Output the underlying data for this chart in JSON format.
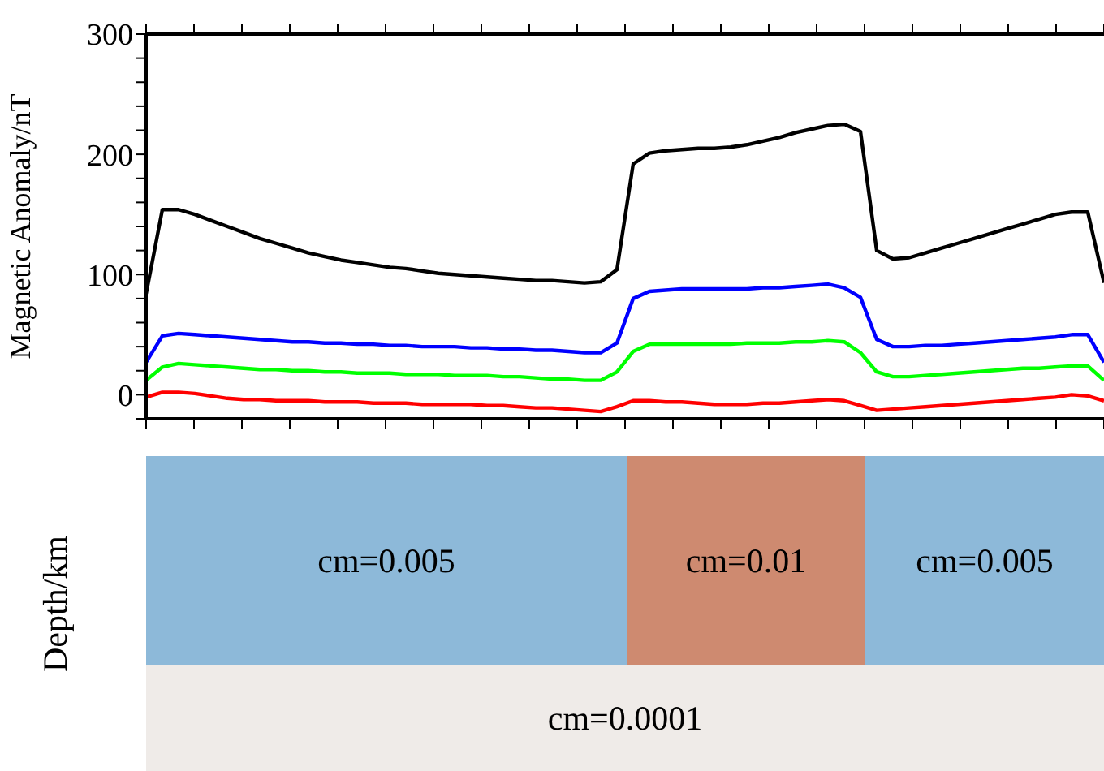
{
  "chart_data": [
    {
      "type": "line",
      "ylabel": "Magnetic Anomaly/nT",
      "tick_labels": "y",
      "ylim": [
        -20,
        300
      ],
      "yticks": [
        {
          "value": -20,
          "label": null
        },
        0,
        {
          "value": 20,
          "label": null
        },
        {
          "value": 40,
          "label": null
        },
        {
          "value": 60,
          "label": null
        },
        {
          "value": 80,
          "label": null
        },
        100,
        {
          "value": 120,
          "label": null
        },
        {
          "value": 140,
          "label": null
        },
        {
          "value": 160,
          "label": null
        },
        {
          "value": 180,
          "label": null
        },
        200,
        {
          "value": 220,
          "label": null
        },
        {
          "value": 240,
          "label": null
        },
        {
          "value": 260,
          "label": null
        },
        {
          "value": 280,
          "label": null
        },
        300
      ],
      "categories": [
        null,
        null,
        null,
        null,
        null,
        null,
        null,
        null,
        null,
        null,
        null,
        null,
        null,
        null,
        null,
        null,
        null,
        null,
        null,
        null,
        null,
        null,
        null,
        null,
        null,
        null,
        null,
        null,
        null,
        null,
        null,
        null,
        null,
        null,
        null,
        null,
        null,
        null,
        null,
        null,
        null,
        null,
        null,
        null,
        null,
        null,
        null,
        null,
        null,
        null,
        null,
        null,
        null,
        null,
        null,
        null,
        null,
        null,
        null,
        null
      ],
      "line_style": "solid",
      "marker": "none",
      "grid": false,
      "legend": false,
      "series": [
        {
          "color": "#000000",
          "values": [
            84,
            154,
            154,
            150,
            145,
            140,
            135,
            130,
            126,
            122,
            118,
            115,
            112,
            110,
            108,
            106,
            105,
            103,
            101,
            100,
            99,
            98,
            97,
            96,
            95,
            95,
            94,
            93,
            94,
            104,
            192,
            201,
            203,
            204,
            205,
            205,
            206,
            208,
            211,
            214,
            218,
            221,
            224,
            225,
            219,
            120,
            113,
            114,
            118,
            122,
            126,
            130,
            134,
            138,
            142,
            146,
            150,
            152,
            152,
            93
          ]
        },
        {
          "color": "#0000ff",
          "values": [
            27,
            49,
            51,
            50,
            49,
            48,
            47,
            46,
            45,
            44,
            44,
            43,
            43,
            42,
            42,
            41,
            41,
            40,
            40,
            40,
            39,
            39,
            38,
            38,
            37,
            37,
            36,
            35,
            35,
            43,
            80,
            86,
            87,
            88,
            88,
            88,
            88,
            88,
            89,
            89,
            90,
            91,
            92,
            89,
            81,
            46,
            40,
            40,
            41,
            41,
            42,
            43,
            44,
            45,
            46,
            47,
            48,
            50,
            50,
            27
          ]
        },
        {
          "color": "#00ff00",
          "values": [
            12,
            23,
            26,
            25,
            24,
            23,
            22,
            21,
            21,
            20,
            20,
            19,
            19,
            18,
            18,
            18,
            17,
            17,
            17,
            16,
            16,
            16,
            15,
            15,
            14,
            13,
            13,
            12,
            12,
            19,
            36,
            42,
            42,
            42,
            42,
            42,
            42,
            43,
            43,
            43,
            44,
            44,
            45,
            44,
            35,
            19,
            15,
            15,
            16,
            17,
            18,
            19,
            20,
            21,
            22,
            22,
            23,
            24,
            24,
            12
          ]
        },
        {
          "color": "#ff0000",
          "values": [
            -2,
            2,
            2,
            1,
            -1,
            -3,
            -4,
            -4,
            -5,
            -5,
            -5,
            -6,
            -6,
            -6,
            -7,
            -7,
            -7,
            -8,
            -8,
            -8,
            -8,
            -9,
            -9,
            -10,
            -11,
            -11,
            -12,
            -13,
            -14,
            -10,
            -5,
            -5,
            -6,
            -6,
            -7,
            -8,
            -8,
            -8,
            -7,
            -7,
            -6,
            -5,
            -4,
            -5,
            -9,
            -13,
            -12,
            -11,
            -10,
            -9,
            -8,
            -7,
            -6,
            -5,
            -4,
            -3,
            -2,
            0,
            -1,
            -5
          ]
        }
      ]
    },
    {
      "type": "other",
      "ylabel": "Depth/km",
      "annotations": [
        "cm=0.005",
        "cm=0.01",
        "cm=0.005",
        "cm=0.0001"
      ]
    }
  ]
}
